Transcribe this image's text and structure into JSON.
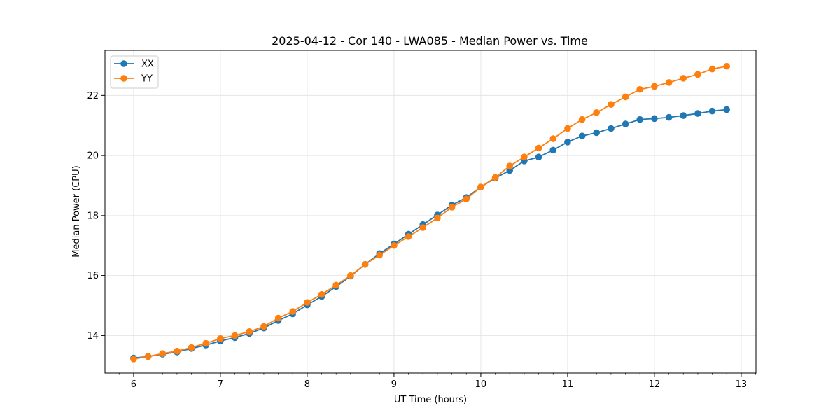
{
  "chart_data": {
    "type": "line",
    "title": "2025-04-12 - Cor 140 - LWA085 - Median Power vs. Time",
    "xlabel": "UT Time (hours)",
    "ylabel": "Median Power (CPU)",
    "xlim": [
      5.67,
      13.17
    ],
    "ylim": [
      12.75,
      23.5
    ],
    "xticks": [
      6,
      7,
      8,
      9,
      10,
      11,
      12,
      13
    ],
    "yticks": [
      14,
      16,
      18,
      20,
      22
    ],
    "grid": true,
    "legend_position": "upper-left",
    "x": [
      6.0,
      6.167,
      6.333,
      6.5,
      6.667,
      6.833,
      7.0,
      7.167,
      7.333,
      7.5,
      7.667,
      7.833,
      8.0,
      8.167,
      8.333,
      8.5,
      8.667,
      8.833,
      9.0,
      9.167,
      9.333,
      9.5,
      9.667,
      9.833,
      10.0,
      10.167,
      10.333,
      10.5,
      10.667,
      10.833,
      11.0,
      11.167,
      11.333,
      11.5,
      11.667,
      11.833,
      12.0,
      12.167,
      12.333,
      12.5,
      12.667,
      12.833
    ],
    "series": [
      {
        "name": "XX",
        "color": "#1f77b4",
        "values": [
          13.25,
          13.3,
          13.38,
          13.45,
          13.57,
          13.68,
          13.82,
          13.93,
          14.07,
          14.25,
          14.5,
          14.72,
          15.02,
          15.3,
          15.63,
          15.98,
          16.37,
          16.73,
          17.05,
          17.38,
          17.7,
          18.02,
          18.35,
          18.6,
          18.95,
          19.25,
          19.5,
          19.82,
          19.95,
          20.18,
          20.45,
          20.65,
          20.76,
          20.9,
          21.05,
          21.2,
          21.23,
          21.27,
          21.33,
          21.4,
          21.48,
          21.53
        ]
      },
      {
        "name": "YY",
        "color": "#ff7f0e",
        "values": [
          13.22,
          13.3,
          13.4,
          13.48,
          13.6,
          13.74,
          13.9,
          14.0,
          14.13,
          14.3,
          14.58,
          14.8,
          15.1,
          15.37,
          15.68,
          16.0,
          16.37,
          16.68,
          17.0,
          17.3,
          17.6,
          17.92,
          18.28,
          18.55,
          18.95,
          19.27,
          19.65,
          19.95,
          20.25,
          20.56,
          20.9,
          21.2,
          21.43,
          21.7,
          21.95,
          22.2,
          22.3,
          22.43,
          22.57,
          22.7,
          22.88,
          22.97
        ]
      }
    ]
  }
}
